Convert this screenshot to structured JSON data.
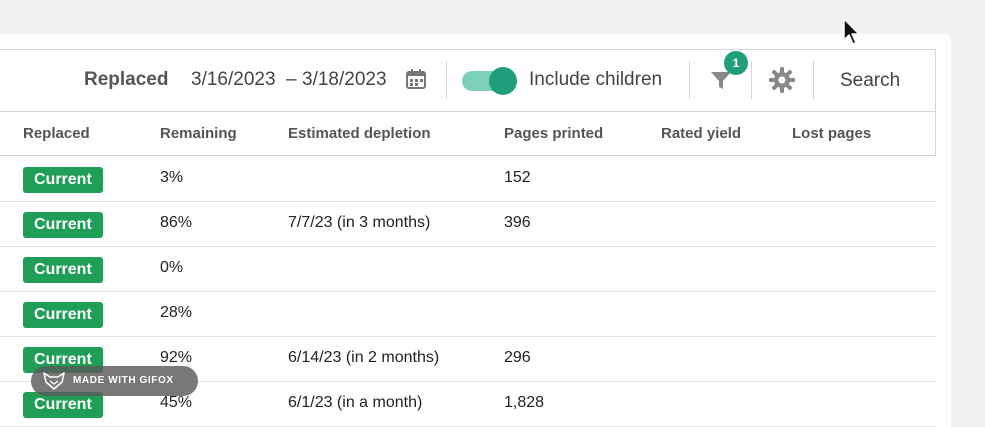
{
  "toolbar": {
    "replaced_label": "Replaced",
    "date_from": "3/16/2023",
    "date_separator": "–",
    "date_to": "3/18/2023",
    "include_children_label": "Include children",
    "include_children_on": true,
    "filter_badge": "1",
    "search_label": "Search"
  },
  "colors": {
    "accent": "#1e9e7a",
    "pill": "#1e9e57"
  },
  "table": {
    "headers": [
      "Replaced",
      "Remaining",
      "Estimated depletion",
      "Pages printed",
      "Rated yield",
      "Lost pages"
    ],
    "rows": [
      {
        "status": "Current",
        "remaining": "3%",
        "depletion": "",
        "pages": "152",
        "yield": "",
        "lost": ""
      },
      {
        "status": "Current",
        "remaining": "86%",
        "depletion": "7/7/23 (in 3 months)",
        "pages": "396",
        "yield": "",
        "lost": ""
      },
      {
        "status": "Current",
        "remaining": "0%",
        "depletion": "",
        "pages": "",
        "yield": "",
        "lost": ""
      },
      {
        "status": "Current",
        "remaining": "28%",
        "depletion": "",
        "pages": "",
        "yield": "",
        "lost": ""
      },
      {
        "status": "Current",
        "remaining": "92%",
        "depletion": "6/14/23 (in 2 months)",
        "pages": "296",
        "yield": "",
        "lost": ""
      },
      {
        "status": "Current",
        "remaining": "45%",
        "depletion": "6/1/23 (in a month)",
        "pages": "1,828",
        "yield": "",
        "lost": ""
      }
    ]
  },
  "watermark": {
    "text": "MADE WITH GIFOX"
  }
}
